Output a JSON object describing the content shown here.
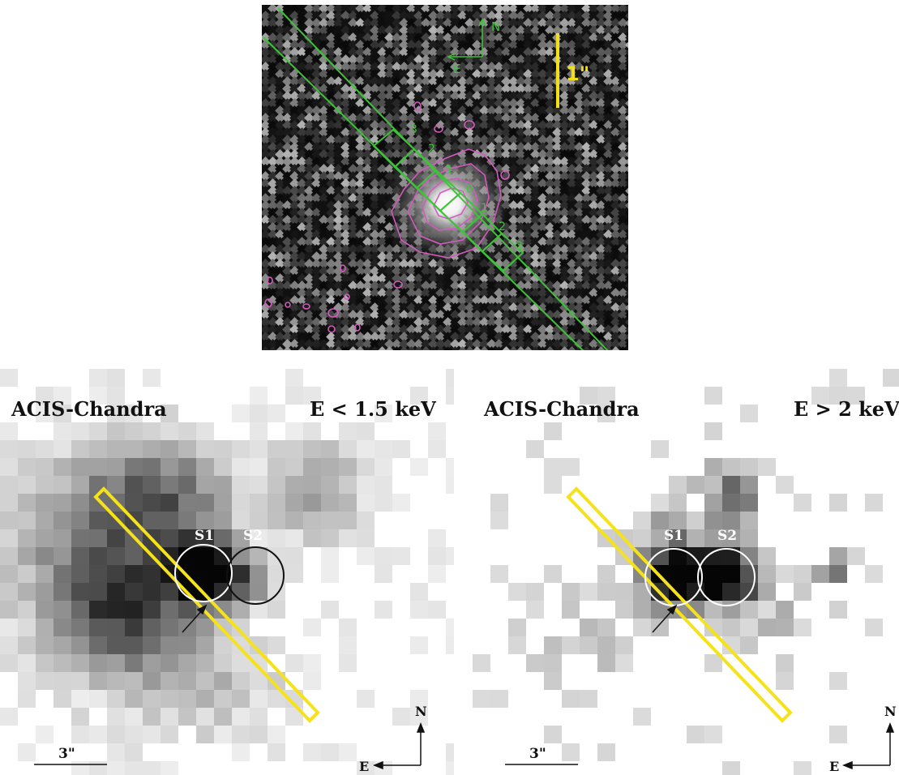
{
  "top_panel": {
    "compass": {
      "north": "N",
      "east": "E"
    },
    "scale_bar_label": "1\"",
    "slit_labels": [
      "3",
      "2",
      "1",
      "0",
      "1",
      "2",
      "3"
    ],
    "colors": {
      "slit": "#3fc23a",
      "contours": "#d35bbf",
      "scale_bar": "#f2df1a"
    }
  },
  "left_panel": {
    "instrument": "ACIS-Chandra",
    "energy": "E < 1.5 keV",
    "sources": [
      "S1",
      "S2"
    ],
    "scale_bar_label": "3\"",
    "compass": {
      "north": "N",
      "east": "E"
    }
  },
  "right_panel": {
    "instrument": "ACIS-Chandra",
    "energy": "E > 2 keV",
    "sources": [
      "S1",
      "S2"
    ],
    "scale_bar_label": "3\"",
    "compass": {
      "north": "N",
      "east": "E"
    }
  },
  "colors": {
    "slit_overlay": "#f5e21a"
  }
}
